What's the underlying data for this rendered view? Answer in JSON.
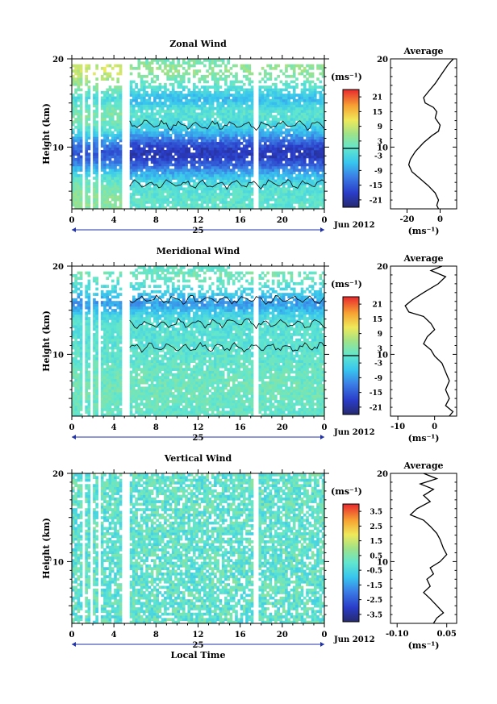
{
  "figure": {
    "x_tick_labels": [
      "0",
      "4",
      "8",
      "12",
      "16",
      "20",
      "0"
    ],
    "day_label": "25",
    "month_label": "Jun 2012",
    "xlabel": "Local Time",
    "ylabel": "Height (km)",
    "unit_label": "(ms⁻¹)",
    "average_title": "Average",
    "y_tick_labels": [
      "20",
      "10"
    ]
  },
  "chart_data": [
    {
      "type": "heatmap",
      "title": "Zonal Wind",
      "ylabel": "Height (km)",
      "xlim_hours": [
        0,
        24
      ],
      "ylim_km": [
        3,
        20
      ],
      "colorbar": {
        "label": "(ms⁻¹)",
        "ticks": [
          "21",
          "15",
          "9",
          "3",
          "-3",
          "-9",
          "-15",
          "-21"
        ],
        "range": [
          -24,
          24
        ],
        "zero_line": true
      },
      "profile": {
        "title": "Average",
        "xlabel": "(ms⁻¹)",
        "xlim": [
          -30,
          10
        ],
        "xticks": [
          "-20",
          "0"
        ],
        "points": [
          [
            8,
            20
          ],
          [
            5,
            19.4
          ],
          [
            1,
            18.3
          ],
          [
            -3,
            17.2
          ],
          [
            -7,
            16.3
          ],
          [
            -10,
            15.6
          ],
          [
            -9,
            15
          ],
          [
            -4,
            14.5
          ],
          [
            -2,
            14
          ],
          [
            -3,
            13.3
          ],
          [
            0,
            12.5
          ],
          [
            -1,
            11.8
          ],
          [
            -5,
            11.3
          ],
          [
            -10,
            10.5
          ],
          [
            -15,
            9.5
          ],
          [
            -18,
            8.6
          ],
          [
            -19,
            8
          ],
          [
            -17,
            7.2
          ],
          [
            -12,
            6.4
          ],
          [
            -7,
            5.6
          ],
          [
            -3,
            4.8
          ],
          [
            -1,
            4
          ],
          [
            -2,
            3.4
          ],
          [
            -1,
            3
          ]
        ]
      }
    },
    {
      "type": "heatmap",
      "title": "Meridional Wind",
      "ylabel": "Height (km)",
      "xlim_hours": [
        0,
        24
      ],
      "ylim_km": [
        3,
        20
      ],
      "colorbar": {
        "label": "(ms⁻¹)",
        "ticks": [
          "21",
          "15",
          "9",
          "3",
          "-3",
          "-9",
          "-15",
          "-21"
        ],
        "range": [
          -24,
          24
        ],
        "zero_line": true
      },
      "profile": {
        "title": "Average",
        "xlabel": "(ms⁻¹)",
        "xlim": [
          -12,
          6
        ],
        "xticks": [
          "-10",
          "0"
        ],
        "points": [
          [
            2,
            20
          ],
          [
            -1,
            19.5
          ],
          [
            3,
            18.8
          ],
          [
            1,
            18
          ],
          [
            -3,
            17
          ],
          [
            -6,
            16.2
          ],
          [
            -8,
            15.5
          ],
          [
            -7,
            14.8
          ],
          [
            -3,
            14.3
          ],
          [
            -1,
            13.5
          ],
          [
            0,
            12.8
          ],
          [
            -2,
            12
          ],
          [
            -3,
            11.2
          ],
          [
            -1,
            10.5
          ],
          [
            0,
            9.8
          ],
          [
            2,
            9
          ],
          [
            3,
            8
          ],
          [
            4,
            7
          ],
          [
            3,
            6
          ],
          [
            4,
            5
          ],
          [
            3,
            4.2
          ],
          [
            5,
            3.5
          ],
          [
            4,
            3
          ]
        ]
      }
    },
    {
      "type": "heatmap",
      "title": "Vertical Wind",
      "ylabel": "Height (km)",
      "xlabel": "Local Time",
      "xlim_hours": [
        0,
        24
      ],
      "ylim_km": [
        3,
        20
      ],
      "colorbar": {
        "label": "(ms⁻¹)",
        "ticks": [
          "3.5",
          "2.5",
          "1.5",
          "0.5",
          "-0.5",
          "-1.5",
          "-2.5",
          "-3.5"
        ],
        "range": [
          -4,
          4
        ],
        "zero_line": false
      },
      "profile": {
        "title": "Average",
        "xlabel": "(ms⁻¹)",
        "xlim": [
          -0.12,
          0.08
        ],
        "xticks": [
          "-0.10",
          "0.05"
        ],
        "points": [
          [
            -0.02,
            20
          ],
          [
            0.02,
            19.4
          ],
          [
            -0.03,
            18.8
          ],
          [
            0.01,
            18.2
          ],
          [
            -0.02,
            17.5
          ],
          [
            0.0,
            16.8
          ],
          [
            -0.04,
            16
          ],
          [
            -0.06,
            15.3
          ],
          [
            -0.02,
            14.7
          ],
          [
            0.0,
            14
          ],
          [
            0.02,
            13.2
          ],
          [
            0.03,
            12.5
          ],
          [
            0.04,
            11.5
          ],
          [
            0.05,
            10.8
          ],
          [
            0.03,
            10
          ],
          [
            0.0,
            9.3
          ],
          [
            0.01,
            8.6
          ],
          [
            -0.01,
            8
          ],
          [
            0.0,
            7.2
          ],
          [
            -0.02,
            6.5
          ],
          [
            0.0,
            5.8
          ],
          [
            0.02,
            5
          ],
          [
            0.04,
            4.2
          ],
          [
            0.02,
            3.6
          ],
          [
            0.01,
            3
          ]
        ]
      }
    }
  ]
}
